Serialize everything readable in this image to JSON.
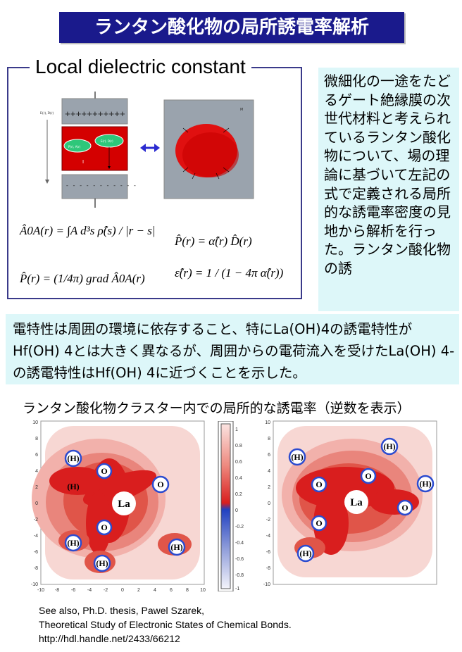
{
  "title": "ランタン酸化物の局所誘電率解析",
  "local_dielectric": {
    "heading": "Local dielectric constant",
    "capacitor_plus": "+++++++++++",
    "capacitor_minus": "- - - - - - - - - - -",
    "field_label": "E(r), D(r)",
    "ellipse_left_label": "P(r), A(r)",
    "ellipse_right_label": "E(r), D(r)",
    "region_label": "I",
    "medium_label": "M",
    "formula1": "Â0A(r) = ∫A d³s ρ̂(s) / |r − s|",
    "formula2": "P̂(r) = α̂(r) D̂(r)",
    "formula3": "P̂(r) = (1/4π) grad Â0A(r)",
    "formula4": "ε̂(r) = 1 / (1 − 4π α̂(r))"
  },
  "side_text": "微細化の一途をたどるゲート絶縁膜の次世代材料と考えられているランタン酸化物について、場の理論に基づいて左記の式で定義される局所的な誘電率密度の見地から解析を行った。ランタン酸化物の誘",
  "middle_text": "電特性は周囲の環境に依存すること、特にLa(OH)4の誘電特性がHf(OH) 4とは大きく異なるが、周囲からの電荷流入を受けたLa(OH) 4-の誘電特性はHf(OH) 4に近づくことを示した。",
  "maps": {
    "caption": "ランタン酸化物クラスター内での局所的な誘電率（逆数を表示）",
    "axis_ticks": [
      "10",
      "8",
      "6",
      "4",
      "2",
      "0",
      "-2",
      "-4",
      "-6",
      "-8",
      "-10"
    ],
    "x_ticks": [
      "-10",
      "-8",
      "-6",
      "-4",
      "-2",
      "0",
      "2",
      "4",
      "6",
      "8",
      "10"
    ],
    "colorbar_ticks": [
      "1",
      "0.8",
      "0.6",
      "0.4",
      "0.2",
      "0",
      "-0.2",
      "-0.4",
      "-0.6",
      "-0.8",
      "-1"
    ],
    "atoms": {
      "la": "La",
      "o": "O",
      "h": "(H)"
    }
  },
  "reference": "See also, Ph.D. thesis, Pawel Szarek,\nTheoretical Study of Electronic States of Chemical Bonds.\nhttp://hdl.handle.net/2433/66212",
  "colors": {
    "banner": "#1a1a8c",
    "box_fill": "#ddf7f9",
    "map_red": "#d91e1e",
    "map_pink": "#f5c4c0",
    "capacitor_red": "#d40000"
  }
}
